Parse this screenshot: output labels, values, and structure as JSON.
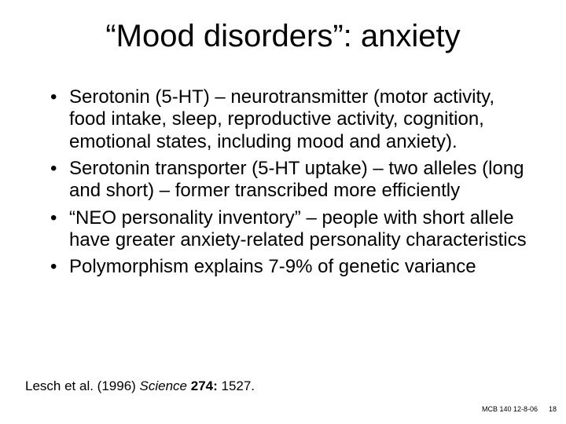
{
  "title": "“Mood disorders”: anxiety",
  "bullets": [
    "Serotonin (5-HT) – neurotransmitter (motor activity, food intake, sleep, reproductive activity, cognition, emotional states, including mood and anxiety).",
    "Serotonin transporter (5-HT uptake) – two alleles (long and short) – former transcribed more efficiently",
    "“NEO personality inventory” – people with short allele have greater anxiety-related personality characteristics",
    "Polymorphism explains 7-9% of genetic variance"
  ],
  "citation": {
    "authors": "Lesch et al. (1996) ",
    "journal": "Science ",
    "volume": "274: ",
    "page": "1527."
  },
  "footer": {
    "course": "MCB 140 12-8-06",
    "page": "18"
  },
  "style": {
    "background_color": "#ffffff",
    "text_color": "#000000",
    "title_fontsize": 40,
    "body_fontsize": 24,
    "citation_fontsize": 17,
    "footer_fontsize": 9,
    "font_family": "Arial"
  }
}
